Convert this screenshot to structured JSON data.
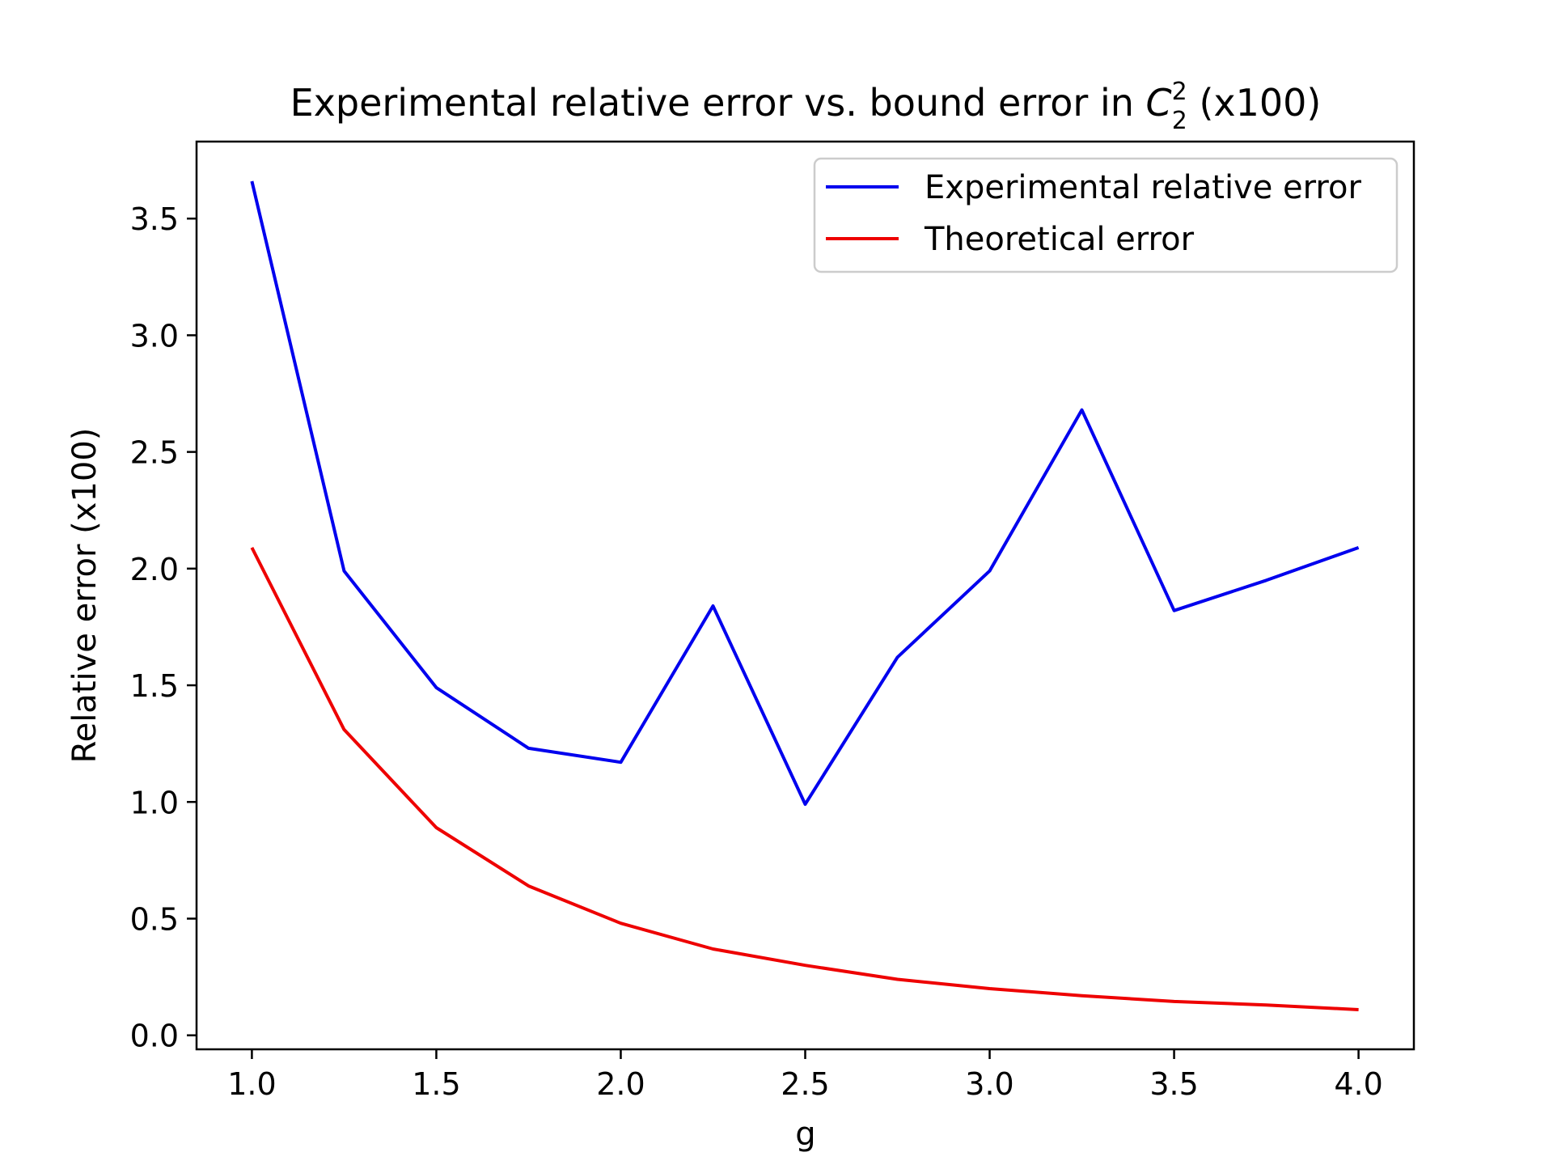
{
  "chart_data": {
    "type": "line",
    "title_main": "Experimental relative error vs. bound error in ",
    "title_symbol": "C",
    "title_superscript": "2",
    "title_subscript": "2",
    "title_tail": " (x100)",
    "xlabel": "g",
    "ylabel": "Relative error (x100)",
    "xlim": [
      0.85,
      4.15
    ],
    "ylim": [
      -0.06,
      3.83
    ],
    "xticks": [
      1.0,
      1.5,
      2.0,
      2.5,
      3.0,
      3.5,
      4.0
    ],
    "xtick_labels": [
      "1.0",
      "1.5",
      "2.0",
      "2.5",
      "3.0",
      "3.5",
      "4.0"
    ],
    "yticks": [
      0.0,
      0.5,
      1.0,
      1.5,
      2.0,
      2.5,
      3.0,
      3.5
    ],
    "ytick_labels": [
      "0.0",
      "0.5",
      "1.0",
      "1.5",
      "2.0",
      "2.5",
      "3.0",
      "3.5"
    ],
    "x": [
      1.0,
      1.25,
      1.5,
      1.75,
      2.0,
      2.25,
      2.5,
      2.75,
      3.0,
      3.25,
      3.5,
      3.75,
      4.0
    ],
    "legend_position": "top-right",
    "grid": false,
    "series": [
      {
        "name": "Experimental relative error",
        "color": "#0000ee",
        "values": [
          3.66,
          1.99,
          1.49,
          1.23,
          1.17,
          1.84,
          0.99,
          1.62,
          1.99,
          2.68,
          1.82,
          1.95,
          2.09
        ]
      },
      {
        "name": "Theoretical error",
        "color": "#ee0000",
        "values": [
          2.09,
          1.31,
          0.89,
          0.64,
          0.48,
          0.37,
          0.3,
          0.24,
          0.2,
          0.17,
          0.145,
          0.13,
          0.11
        ]
      }
    ]
  }
}
